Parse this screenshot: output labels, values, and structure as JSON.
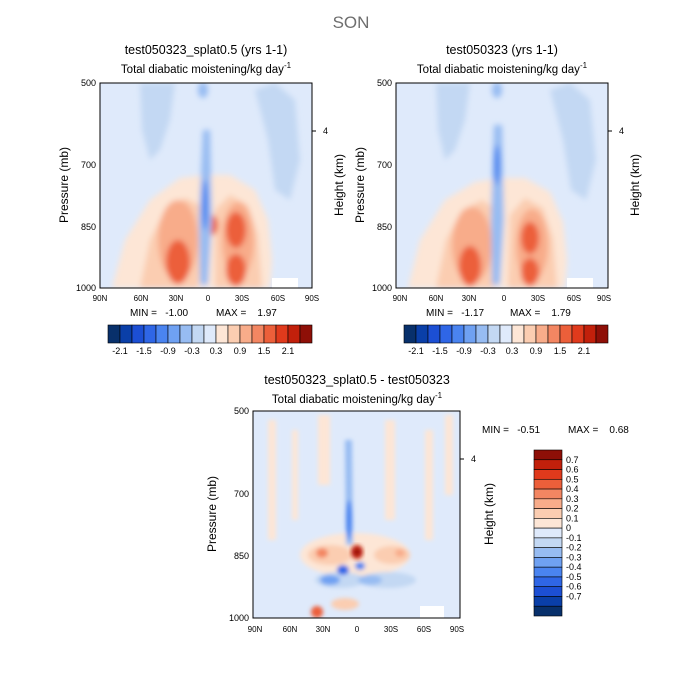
{
  "figure": {
    "season": "SON"
  },
  "panels": [
    {
      "id": "left",
      "title": "test050323_splat0.5 (yrs 1-1)",
      "subtitle": "Total diabatic moistening/kg day",
      "subtitle_sup": "-1",
      "ylabel": "Pressure (mb)",
      "ylabel_right": "Height (km)",
      "yticks": [
        "500",
        "700",
        "850",
        "1000"
      ],
      "height_tick": "4",
      "xticks": [
        "90N",
        "60N",
        "30N",
        "0",
        "30S",
        "60S",
        "90S"
      ],
      "min_text": "MIN =   -1.00",
      "max_text": "MAX =    1.97"
    },
    {
      "id": "right",
      "title": "test050323 (yrs 1-1)",
      "subtitle": "Total diabatic moistening/kg day",
      "subtitle_sup": "-1",
      "ylabel": "Pressure (mb)",
      "ylabel_right": "Height (km)",
      "yticks": [
        "500",
        "700",
        "850",
        "1000"
      ],
      "height_tick": "4",
      "xticks": [
        "90N",
        "60N",
        "30N",
        "0",
        "30S",
        "60S",
        "90S"
      ],
      "min_text": "MIN =   -1.17",
      "max_text": "MAX =    1.79"
    },
    {
      "id": "diff",
      "title": "test050323_splat0.5 - test050323",
      "subtitle": "Total diabatic moistening/kg day",
      "subtitle_sup": "-1",
      "ylabel": "Pressure (mb)",
      "ylabel_right": "Height (km)",
      "yticks": [
        "500",
        "700",
        "850",
        "1000"
      ],
      "height_tick": "4",
      "xticks": [
        "90N",
        "60N",
        "30N",
        "0",
        "30S",
        "60S",
        "90S"
      ],
      "min_text": "MIN =   -0.51",
      "max_text": "MAX =    0.68"
    }
  ],
  "colorbars": {
    "top": {
      "colors": [
        "#08306b",
        "#0a3fa8",
        "#1c4fd4",
        "#2f66e6",
        "#4a84f0",
        "#6fa1f2",
        "#97bcf2",
        "#c3d8f3",
        "#dfeafb",
        "#fde6d6",
        "#fbcdb1",
        "#f8ac8a",
        "#f38662",
        "#ec5f3a",
        "#e03a1c",
        "#c2200b",
        "#8e0f07"
      ],
      "labels": [
        "-2.1",
        "-1.5",
        "-0.9",
        "-0.3",
        "0.3",
        "0.9",
        "1.5",
        "2.1"
      ]
    },
    "diff": {
      "colors": [
        "#8e0f07",
        "#c2200b",
        "#e03a1c",
        "#ec5f3a",
        "#f38662",
        "#f8ac8a",
        "#fbcdb1",
        "#fde6d6",
        "#dfeafb",
        "#c3d8f3",
        "#97bcf2",
        "#6fa1f2",
        "#4a84f0",
        "#2f66e6",
        "#1c4fd4",
        "#0a3fa8",
        "#08306b"
      ],
      "labels": [
        "0.7",
        "0.6",
        "0.5",
        "0.4",
        "0.3",
        "0.2",
        "0.1",
        "0",
        "-0.1",
        "-0.2",
        "-0.3",
        "-0.4",
        "-0.5",
        "-0.6",
        "-0.7"
      ]
    }
  },
  "chart_data": [
    {
      "type": "heatmap",
      "title": "test050323_splat0.5 (yrs 1-1)",
      "subtitle": "Total diabatic moistening/kg day-1",
      "xlabel": "",
      "ylabel": "Pressure (mb)",
      "x_ticks": [
        "90N",
        "60N",
        "30N",
        "0",
        "30S",
        "60S",
        "90S"
      ],
      "y_ticks": [
        500,
        700,
        850,
        1000
      ],
      "y_range": [
        500,
        1000
      ],
      "min": -1.0,
      "max": 1.97,
      "features": [
        {
          "lat": 40,
          "p": 950,
          "value": 1.5
        },
        {
          "lat": 22,
          "p": 870,
          "value": 1.3
        },
        {
          "lat": 8,
          "p": 860,
          "value": 1.2
        },
        {
          "lat": -25,
          "p": 870,
          "value": 1.8
        },
        {
          "lat": -28,
          "p": 960,
          "value": 1.3
        },
        {
          "lat": -2,
          "p": 820,
          "value": -1.0
        },
        {
          "lat": -2,
          "p": 680,
          "value": -0.5
        },
        {
          "lat": 55,
          "p": 620,
          "value": -0.3
        },
        {
          "lat": -55,
          "p": 600,
          "value": -0.3
        }
      ]
    },
    {
      "type": "heatmap",
      "title": "test050323 (yrs 1-1)",
      "subtitle": "Total diabatic moistening/kg day-1",
      "xlabel": "",
      "ylabel": "Pressure (mb)",
      "x_ticks": [
        "90N",
        "60N",
        "30N",
        "0",
        "30S",
        "60S",
        "90S"
      ],
      "y_ticks": [
        500,
        700,
        850,
        1000
      ],
      "y_range": [
        500,
        1000
      ],
      "min": -1.17,
      "max": 1.79,
      "features": [
        {
          "lat": 40,
          "p": 950,
          "value": 1.3
        },
        {
          "lat": 15,
          "p": 870,
          "value": 1.1
        },
        {
          "lat": -22,
          "p": 880,
          "value": 1.5
        },
        {
          "lat": -30,
          "p": 960,
          "value": 1.2
        },
        {
          "lat": 2,
          "p": 780,
          "value": -1.1
        },
        {
          "lat": 55,
          "p": 620,
          "value": -0.3
        },
        {
          "lat": -55,
          "p": 600,
          "value": -0.3
        }
      ]
    },
    {
      "type": "heatmap",
      "title": "test050323_splat0.5 - test050323",
      "subtitle": "Total diabatic moistening/kg day-1",
      "xlabel": "",
      "ylabel": "Pressure (mb)",
      "x_ticks": [
        "90N",
        "60N",
        "30N",
        "0",
        "30S",
        "60S",
        "90S"
      ],
      "y_ticks": [
        500,
        700,
        850,
        1000
      ],
      "y_range": [
        500,
        1000
      ],
      "min": -0.51,
      "max": 0.68,
      "features": [
        {
          "lat": 0,
          "p": 850,
          "value": 0.65
        },
        {
          "lat": 20,
          "p": 850,
          "value": 0.3
        },
        {
          "lat": -20,
          "p": 850,
          "value": 0.25
        },
        {
          "lat": 7,
          "p": 880,
          "value": -0.5
        },
        {
          "lat": 10,
          "p": 760,
          "value": -0.45
        },
        {
          "lat": 28,
          "p": 990,
          "value": 0.55
        },
        {
          "lat": 35,
          "p": 890,
          "value": -0.25
        }
      ]
    }
  ]
}
